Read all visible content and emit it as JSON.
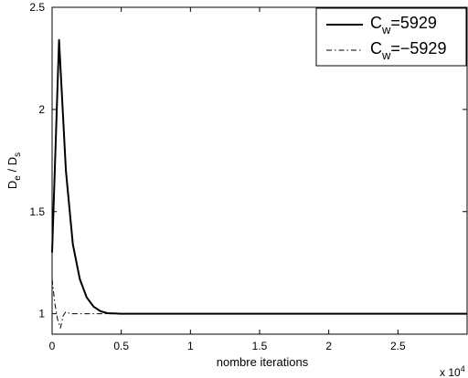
{
  "chart_data": {
    "type": "line",
    "xlabel": "nombre iterations",
    "ylabel": {
      "base1": "D",
      "sub1": "e",
      "sep": " / ",
      "base2": "D",
      "sub2": "s"
    },
    "x_multiplier": {
      "base": "x 10",
      "exp": "4"
    },
    "xlim": [
      0,
      3
    ],
    "ylim": [
      0.9,
      2.5
    ],
    "xticks": [
      0,
      0.5,
      1,
      1.5,
      2,
      2.5
    ],
    "yticks": [
      1,
      1.5,
      2,
      2.5
    ],
    "xtick_labels": [
      "0",
      "0.5",
      "1",
      "1.5",
      "2",
      "2.5"
    ],
    "ytick_labels": [
      "1",
      "1.5",
      "2",
      "2.5"
    ],
    "grid": false,
    "legend_position": "top-right",
    "series": [
      {
        "legend": {
          "base": "C",
          "sub": "w",
          "value": "=5929"
        },
        "style": "solid",
        "x": [
          0,
          0.05,
          0.1,
          0.15,
          0.2,
          0.25,
          0.3,
          0.35,
          0.4,
          0.5,
          1.0,
          2.0,
          3.0
        ],
        "y": [
          1.3,
          2.34,
          1.7,
          1.34,
          1.17,
          1.08,
          1.035,
          1.012,
          1.003,
          1.0,
          1.0,
          1.0,
          1.0
        ]
      },
      {
        "legend": {
          "base": "C",
          "sub": "w",
          "value": "=−5929"
        },
        "style": "dashdot",
        "x": [
          0,
          0.02,
          0.04,
          0.06,
          0.08,
          0.1,
          0.13,
          0.2,
          0.5,
          1.0,
          2.0,
          3.0
        ],
        "y": [
          1.17,
          1.05,
          0.97,
          0.93,
          0.99,
          1.01,
          1.0,
          1.0,
          1.0,
          1.0,
          1.0,
          1.0
        ]
      }
    ]
  }
}
